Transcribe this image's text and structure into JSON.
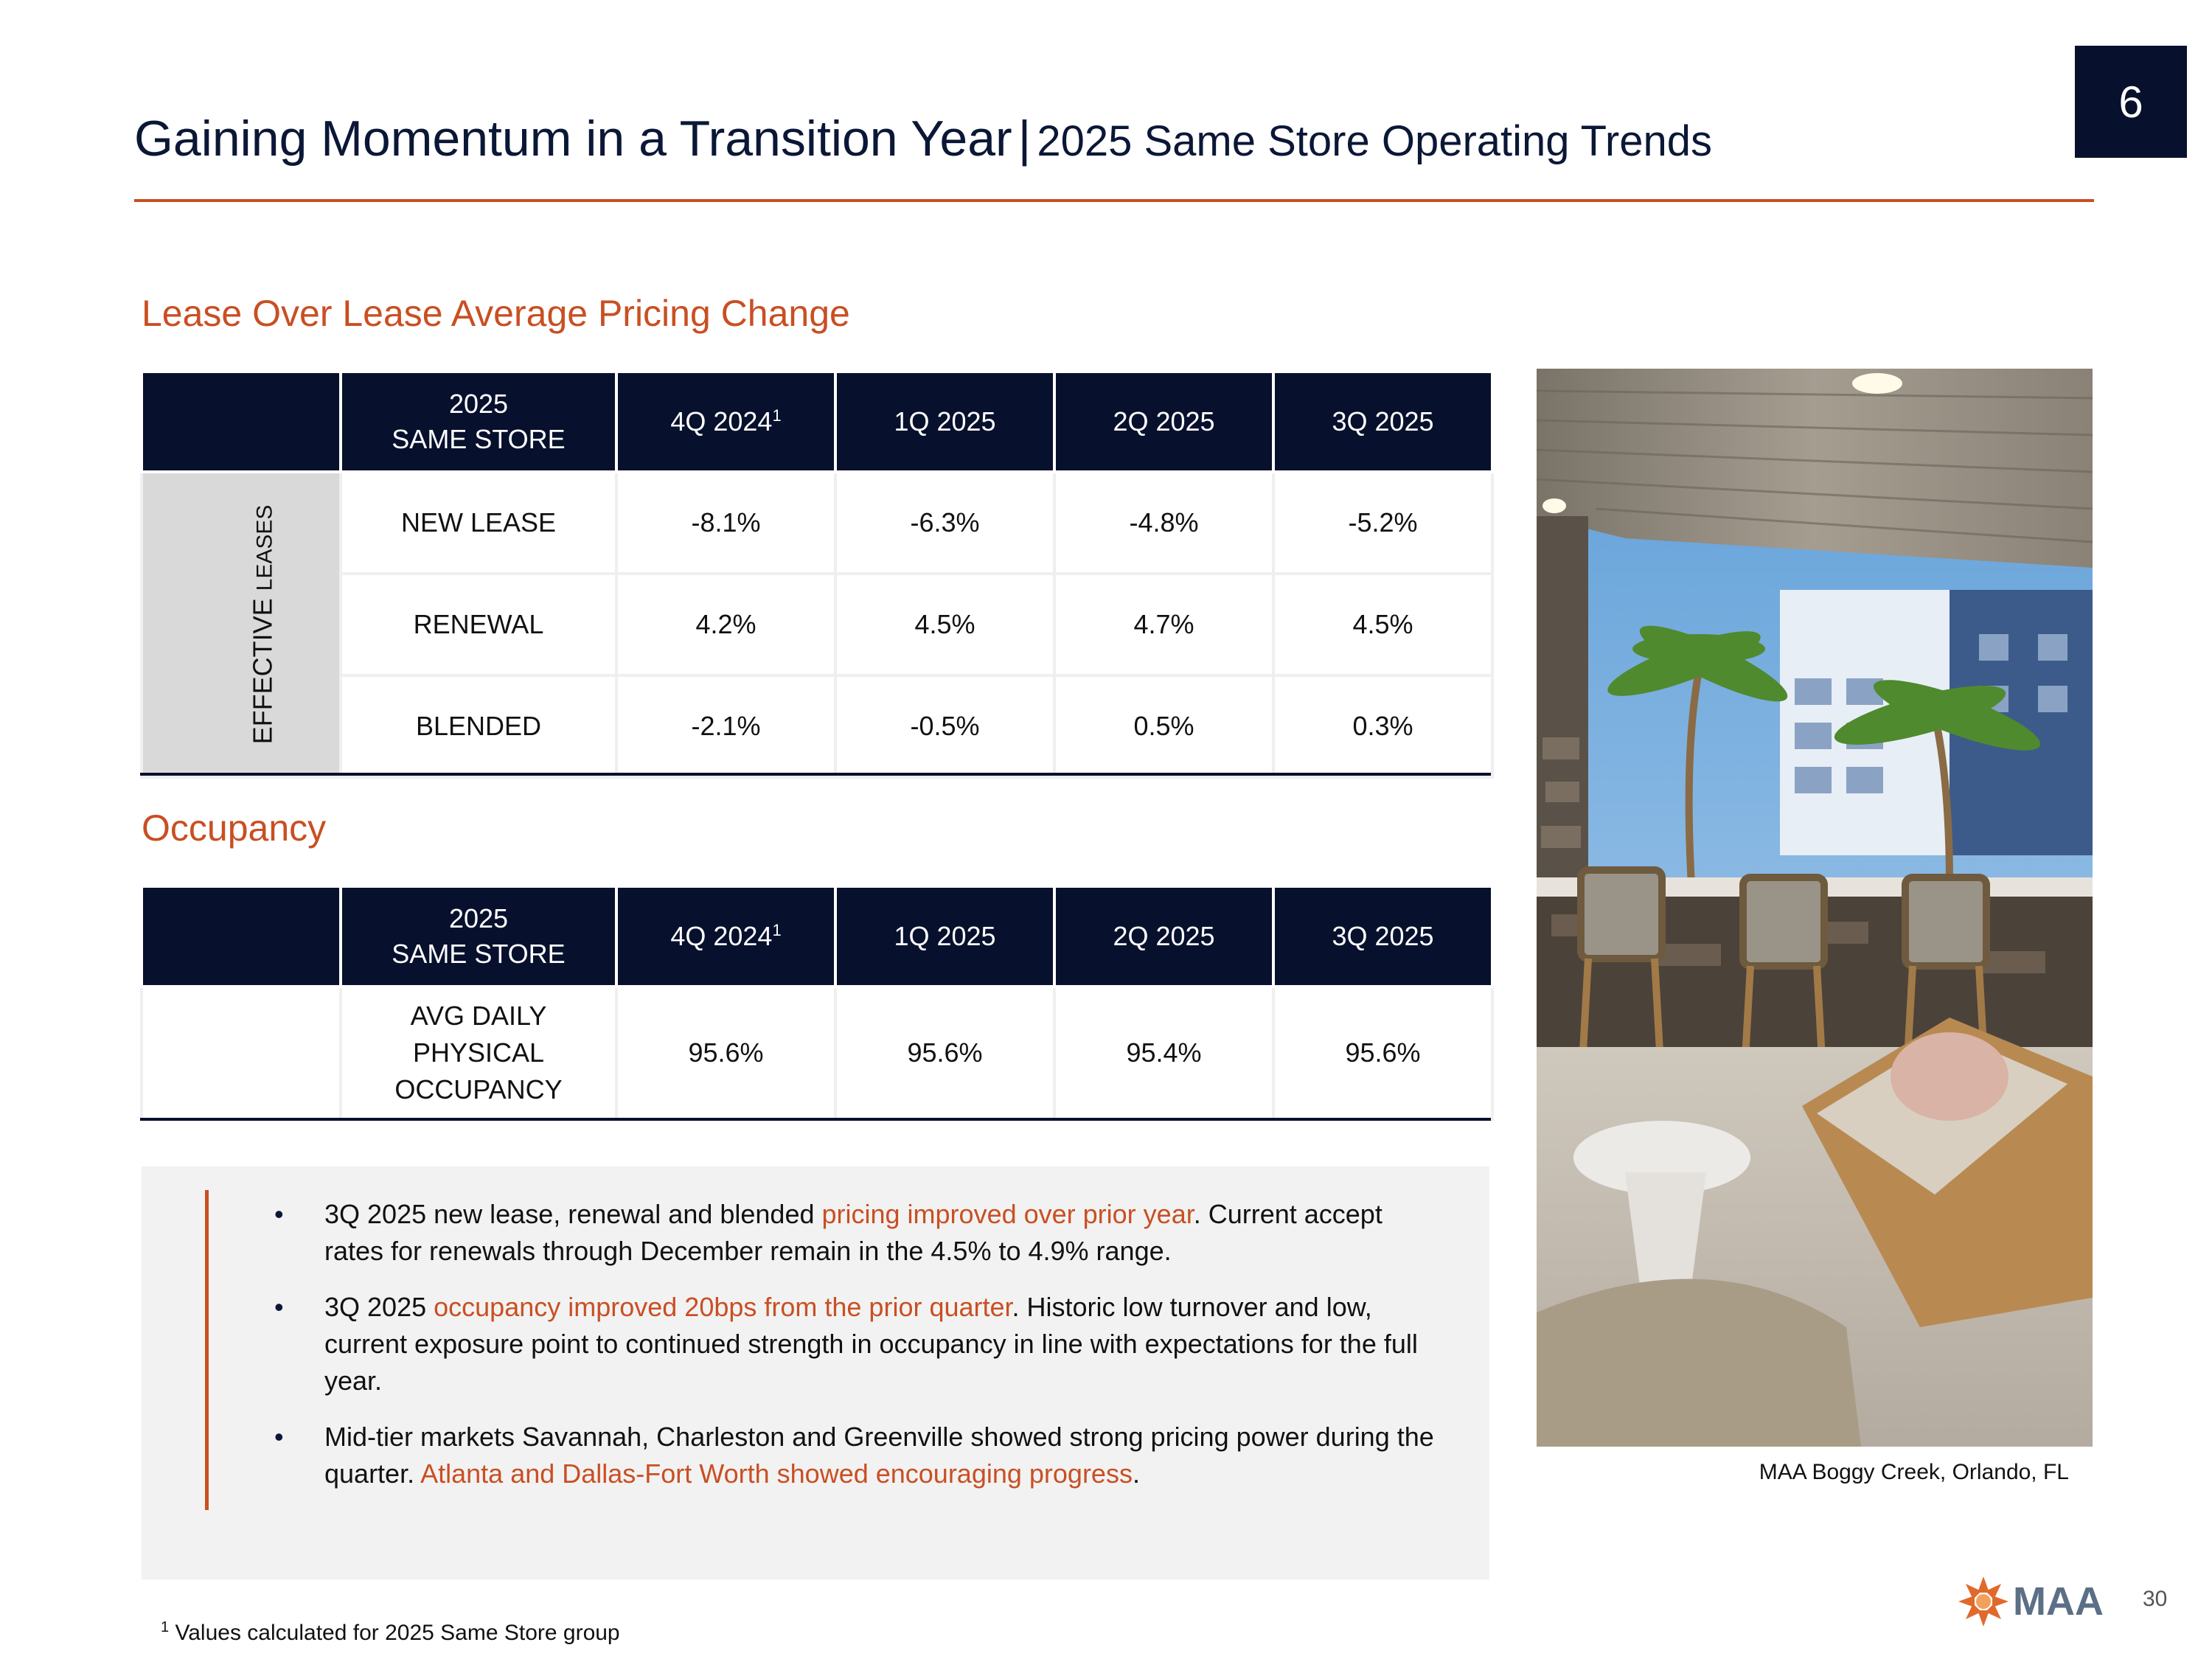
{
  "slide_badge": "6",
  "header": {
    "title": "Gaining Momentum in a Transition Year",
    "separator": "|",
    "subtitle": "2025 Same Store Operating Trends"
  },
  "lease_section": {
    "heading": "Lease Over Lease Average Pricing Change",
    "header_row": {
      "col0": "2025",
      "col0_line2": "SAME STORE",
      "q1": "4Q 2024",
      "q1_sup": "1",
      "q2": "1Q 2025",
      "q3": "2Q 2025",
      "q4": "3Q 2025"
    },
    "side_label_main": "EFFECTIVE",
    "side_label_small": "LEASES",
    "rows": [
      {
        "label": "NEW LEASE",
        "v1": "-8.1%",
        "v2": "-6.3%",
        "v3": "-4.8%",
        "v4": "-5.2%"
      },
      {
        "label": "RENEWAL",
        "v1": "4.2%",
        "v2": "4.5%",
        "v3": "4.7%",
        "v4": "4.5%"
      },
      {
        "label": "BLENDED",
        "v1": "-2.1%",
        "v2": "-0.5%",
        "v3": "0.5%",
        "v4": "0.3%"
      }
    ]
  },
  "occupancy_section": {
    "heading": "Occupancy",
    "header_row": {
      "col0": "2025",
      "col0_line2": "SAME STORE",
      "q1": "4Q 2024",
      "q1_sup": "1",
      "q2": "1Q 2025",
      "q3": "2Q 2025",
      "q4": "3Q 2025"
    },
    "row": {
      "label_l1": "AVG DAILY",
      "label_l2": "PHYSICAL",
      "label_l3": "OCCUPANCY",
      "v1": "95.6%",
      "v2": "95.6%",
      "v3": "95.4%",
      "v4": "95.6%"
    }
  },
  "notes": {
    "b1_a": "3Q 2025 new lease, renewal and blended ",
    "b1_hl": "pricing improved over prior year",
    "b1_b": ".  Current accept rates for renewals through December remain in the 4.5% to 4.9% range.",
    "b2_a": "3Q 2025 ",
    "b2_hl": "occupancy improved 20bps from the prior quarter",
    "b2_b": ". Historic low turnover and low, current exposure point to continued strength in occupancy in line with expectations for the full year.",
    "b3_a": "Mid-tier markets Savannah, Charleston and Greenville showed strong pricing power during the quarter. ",
    "b3_hl": "Atlanta and Dallas-Fort Worth showed encouraging progress",
    "b3_b": "."
  },
  "photo_caption": "MAA Boggy Creek, Orlando, FL",
  "footnote": {
    "sup": "1",
    "text": "Values calculated for 2025 Same Store group"
  },
  "logo_text": "MAA",
  "page_number": "30",
  "colors": {
    "navy": "#07102d",
    "accent": "#c94f22",
    "panel": "#f2f2f2"
  }
}
